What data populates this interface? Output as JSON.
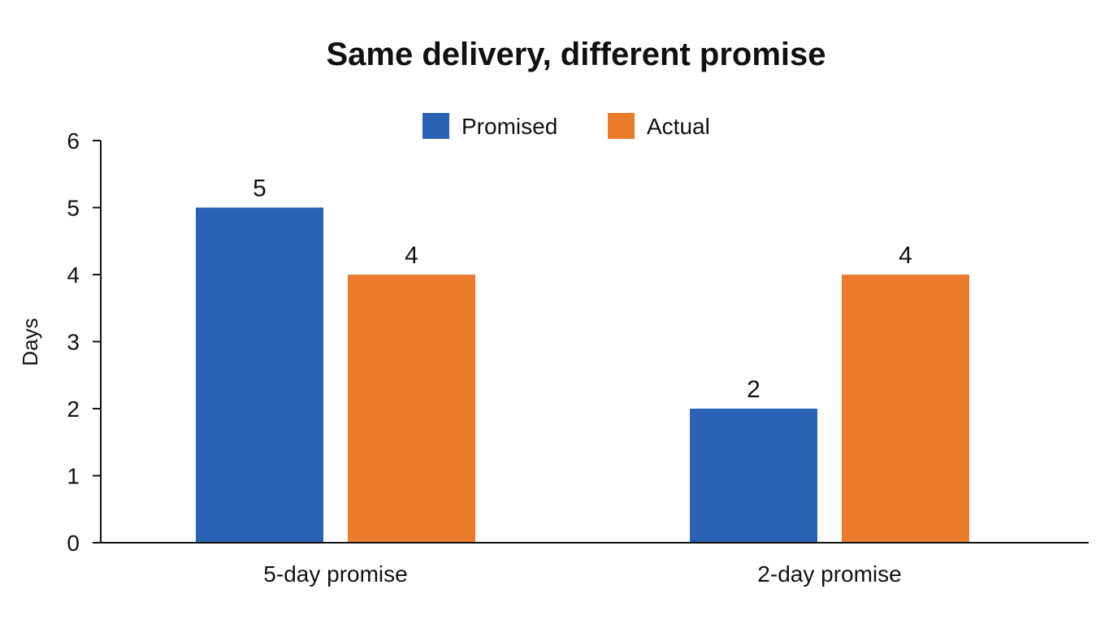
{
  "chart_data": {
    "type": "bar",
    "title": "Same delivery, different promise",
    "xlabel": "",
    "ylabel": "Days",
    "categories": [
      "5-day promise",
      "2-day promise"
    ],
    "series": [
      {
        "name": "Promised",
        "values": [
          5,
          2
        ],
        "color": "#2a63b5"
      },
      {
        "name": "Actual",
        "values": [
          4,
          4
        ],
        "color": "#e97b2b"
      }
    ],
    "ylim": [
      0,
      6
    ],
    "yticks": [
      "0",
      "1",
      "2",
      "3",
      "4",
      "5",
      "6"
    ],
    "data_labels": [
      [
        "5",
        "2"
      ],
      [
        "4",
        "4"
      ]
    ],
    "legend_position": "top-center",
    "grid": false
  }
}
